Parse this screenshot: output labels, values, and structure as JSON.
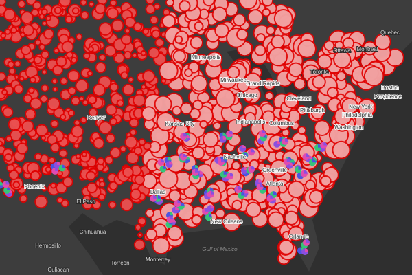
{
  "map": {
    "labels": [
      "Quebec",
      "Ottawa",
      "Montreal",
      "Toronto",
      "Minneapolis",
      "Milwaukee",
      "Grand Rapids",
      "Chicago",
      "Cleveland",
      "Pittsburgh",
      "New York",
      "Boston",
      "Providence",
      "Philadelphia",
      "Washington",
      "Columbus",
      "Indianapolis",
      "Kansas City",
      "Denver",
      "Nashville",
      "Atlanta",
      "Greenville",
      "Dallas",
      "New Orleans",
      "Orlando",
      "Phoenix",
      "El Paso",
      "Hermosillo",
      "Chihuahua",
      "Torreón",
      "Monterrey",
      "Culiacan",
      "Gulf of Mexico"
    ]
  }
}
